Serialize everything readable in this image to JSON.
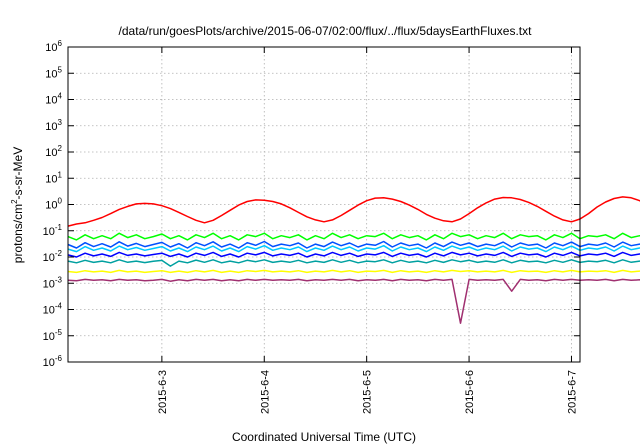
{
  "chart_data": {
    "type": "line",
    "title": "/data/run/goesPlots/archive/2015-06-07/02:00/flux/../flux/5daysEarthFluxes.txt",
    "xlabel": "Coordinated Universal Time (UTC)",
    "ylabel": "protons/cm2-s-sr-MeV",
    "ylabel_parts": {
      "before": "protons/cm",
      "sup": "2",
      "after": "-s-sr-MeV"
    },
    "yscale": "log",
    "ylim": [
      1e-06,
      1000000.0
    ],
    "y_ticks": [
      {
        "base": "10",
        "exp": "-6"
      },
      {
        "base": "10",
        "exp": "-5"
      },
      {
        "base": "10",
        "exp": "-4"
      },
      {
        "base": "10",
        "exp": "-3"
      },
      {
        "base": "10",
        "exp": "-2"
      },
      {
        "base": "10",
        "exp": "-1"
      },
      {
        "base": "10",
        "exp": "0"
      },
      {
        "base": "10",
        "exp": "1"
      },
      {
        "base": "10",
        "exp": "2"
      },
      {
        "base": "10",
        "exp": "3"
      },
      {
        "base": "10",
        "exp": "4"
      },
      {
        "base": "10",
        "exp": "5"
      },
      {
        "base": "10",
        "exp": "6"
      }
    ],
    "xlim": [
      "2015-06-02T02:00",
      "2015-06-07T02:00"
    ],
    "x_ticks": [
      "2015-6-3",
      "2015-6-4",
      "2015-6-5",
      "2015-6-6",
      "2015-6-7"
    ],
    "grid": true,
    "sample_step_hours": 2,
    "series": [
      {
        "color": "#ff0000",
        "values": [
          0.15,
          0.18,
          0.2,
          0.25,
          0.32,
          0.45,
          0.65,
          0.85,
          1.05,
          1.1,
          1.05,
          0.9,
          0.7,
          0.5,
          0.35,
          0.25,
          0.2,
          0.25,
          0.38,
          0.6,
          0.95,
          1.3,
          1.5,
          1.45,
          1.3,
          1.05,
          0.75,
          0.5,
          0.34,
          0.26,
          0.22,
          0.26,
          0.38,
          0.6,
          0.95,
          1.4,
          1.75,
          1.8,
          1.6,
          1.3,
          0.95,
          0.65,
          0.42,
          0.3,
          0.24,
          0.22,
          0.28,
          0.45,
          0.75,
          1.15,
          1.6,
          1.85,
          1.8,
          1.55,
          1.2,
          0.85,
          0.55,
          0.36,
          0.26,
          0.22,
          0.28,
          0.45,
          0.8,
          1.25,
          1.7,
          1.95,
          1.8,
          1.4,
          0.95
        ]
      },
      {
        "color": "#00ff00",
        "values": [
          0.06,
          0.045,
          0.07,
          0.05,
          0.065,
          0.05,
          0.08,
          0.055,
          0.07,
          0.05,
          0.06,
          0.075,
          0.05,
          0.065,
          0.045,
          0.07,
          0.055,
          0.08,
          0.05,
          0.065,
          0.045,
          0.07,
          0.06,
          0.08,
          0.05,
          0.065,
          0.055,
          0.07,
          0.045,
          0.065,
          0.05,
          0.08,
          0.055,
          0.07,
          0.05,
          0.065,
          0.06,
          0.08,
          0.05,
          0.07,
          0.055,
          0.065,
          0.045,
          0.07,
          0.05,
          0.08,
          0.06,
          0.07,
          0.05,
          0.065,
          0.055,
          0.08,
          0.05,
          0.07,
          0.06,
          0.065,
          0.045,
          0.07,
          0.055,
          0.08,
          0.05,
          0.065,
          0.06,
          0.07,
          0.05,
          0.08,
          0.055,
          0.065,
          0.06
        ]
      },
      {
        "color": "#00c8ff",
        "values": [
          0.02,
          0.016,
          0.025,
          0.018,
          0.022,
          0.017,
          0.026,
          0.019,
          0.023,
          0.018,
          0.021,
          0.025,
          0.017,
          0.022,
          0.016,
          0.024,
          0.019,
          0.026,
          0.017,
          0.022,
          0.016,
          0.025,
          0.02,
          0.027,
          0.018,
          0.022,
          0.019,
          0.024,
          0.016,
          0.022,
          0.018,
          0.026,
          0.019,
          0.024,
          0.017,
          0.022,
          0.02,
          0.027,
          0.017,
          0.024,
          0.019,
          0.022,
          0.016,
          0.024,
          0.018,
          0.026,
          0.02,
          0.024,
          0.018,
          0.022,
          0.019,
          0.026,
          0.017,
          0.024,
          0.02,
          0.022,
          0.016,
          0.024,
          0.019,
          0.026,
          0.018,
          0.022,
          0.02,
          0.024,
          0.017,
          0.026,
          0.019,
          0.022,
          0.02
        ]
      },
      {
        "color": "#0050ff",
        "values": [
          0.03,
          0.022,
          0.035,
          0.025,
          0.032,
          0.024,
          0.038,
          0.026,
          0.033,
          0.025,
          0.03,
          0.036,
          0.024,
          0.032,
          0.022,
          0.035,
          0.027,
          0.038,
          0.024,
          0.031,
          0.022,
          0.035,
          0.028,
          0.039,
          0.025,
          0.031,
          0.027,
          0.034,
          0.022,
          0.031,
          0.025,
          0.037,
          0.027,
          0.034,
          0.024,
          0.031,
          0.028,
          0.039,
          0.024,
          0.034,
          0.027,
          0.031,
          0.022,
          0.034,
          0.025,
          0.037,
          0.028,
          0.034,
          0.025,
          0.031,
          0.027,
          0.037,
          0.024,
          0.034,
          0.028,
          0.031,
          0.022,
          0.034,
          0.027,
          0.037,
          0.025,
          0.031,
          0.028,
          0.034,
          0.024,
          0.037,
          0.027,
          0.031,
          0.028
        ]
      },
      {
        "color": "#0000ff",
        "values": [
          0.012,
          0.01,
          0.014,
          0.011,
          0.013,
          0.0105,
          0.015,
          0.0115,
          0.013,
          0.011,
          0.0125,
          0.014,
          0.0105,
          0.013,
          0.01,
          0.014,
          0.0115,
          0.015,
          0.0105,
          0.013,
          0.01,
          0.014,
          0.012,
          0.015,
          0.011,
          0.013,
          0.0115,
          0.014,
          0.01,
          0.013,
          0.011,
          0.015,
          0.0115,
          0.014,
          0.0105,
          0.013,
          0.012,
          0.015,
          0.0105,
          0.014,
          0.0115,
          0.013,
          0.01,
          0.014,
          0.011,
          0.015,
          0.012,
          0.014,
          0.011,
          0.013,
          0.0115,
          0.015,
          0.0105,
          0.014,
          0.012,
          0.013,
          0.01,
          0.014,
          0.0115,
          0.015,
          0.011,
          0.013,
          0.012,
          0.014,
          0.0105,
          0.015,
          0.0115,
          0.013,
          0.012
        ]
      },
      {
        "color": "#00a0a0",
        "values": [
          0.007,
          0.006,
          0.0075,
          0.0062,
          0.007,
          0.006,
          0.0078,
          0.0063,
          0.007,
          0.0061,
          0.0069,
          0.0074,
          0.0045,
          0.007,
          0.006,
          0.0076,
          0.0063,
          0.0078,
          0.006,
          0.007,
          0.006,
          0.0075,
          0.0066,
          0.0078,
          0.0062,
          0.007,
          0.0063,
          0.0075,
          0.006,
          0.007,
          0.0062,
          0.0078,
          0.0063,
          0.0075,
          0.006,
          0.007,
          0.0066,
          0.0078,
          0.006,
          0.0075,
          0.0063,
          0.007,
          0.006,
          0.0075,
          0.0062,
          0.0078,
          0.0066,
          0.0075,
          0.0062,
          0.007,
          0.0063,
          0.0078,
          0.006,
          0.0075,
          0.0066,
          0.007,
          0.006,
          0.0075,
          0.0063,
          0.0078,
          0.0062,
          0.007,
          0.0066,
          0.0075,
          0.006,
          0.0078,
          0.0063,
          0.007,
          0.0066
        ]
      },
      {
        "color": "#ffff00",
        "values": [
          0.0028,
          0.0026,
          0.003,
          0.0027,
          0.0029,
          0.0026,
          0.0031,
          0.0027,
          0.0029,
          0.0026,
          0.0028,
          0.003,
          0.0026,
          0.0029,
          0.0026,
          0.003,
          0.0027,
          0.0031,
          0.0026,
          0.0029,
          0.0026,
          0.003,
          0.0028,
          0.0031,
          0.0027,
          0.0029,
          0.0027,
          0.003,
          0.0026,
          0.0029,
          0.0027,
          0.0031,
          0.0027,
          0.003,
          0.0026,
          0.0029,
          0.0028,
          0.0031,
          0.0026,
          0.003,
          0.0027,
          0.0029,
          0.0026,
          0.003,
          0.0027,
          0.0031,
          0.0028,
          0.003,
          0.0027,
          0.0029,
          0.0027,
          0.0031,
          0.0026,
          0.003,
          0.0028,
          0.0029,
          0.0026,
          0.003,
          0.0027,
          0.0031,
          0.0027,
          0.0029,
          0.0028,
          0.003,
          0.0026,
          0.0031,
          0.0027,
          0.0029,
          0.0028
        ]
      },
      {
        "color": "#a03070",
        "values": [
          0.0013,
          0.00125,
          0.0014,
          0.0013,
          0.00135,
          0.00125,
          0.0014,
          0.0013,
          0.00135,
          0.00125,
          0.0013,
          0.0014,
          0.0012,
          0.00135,
          0.00125,
          0.0014,
          0.0013,
          0.0014,
          0.00125,
          0.00135,
          0.00125,
          0.0014,
          0.0013,
          0.0014,
          0.0013,
          0.00135,
          0.0013,
          0.0014,
          0.00125,
          0.00135,
          0.0013,
          0.0014,
          0.0013,
          0.0014,
          0.00125,
          0.00135,
          0.0013,
          0.0014,
          0.00125,
          0.0014,
          0.0013,
          0.00135,
          0.00125,
          0.0014,
          0.0013,
          0.0014,
          3e-05,
          0.0014,
          0.0013,
          0.00135,
          0.0013,
          0.0014,
          0.0005,
          0.0014,
          0.0013,
          0.00135,
          0.00125,
          0.0014,
          0.0013,
          0.0014,
          0.0013,
          0.00135,
          0.0013,
          0.0014,
          0.00125,
          0.0014,
          0.0013,
          0.00135,
          0.0013
        ]
      }
    ]
  }
}
